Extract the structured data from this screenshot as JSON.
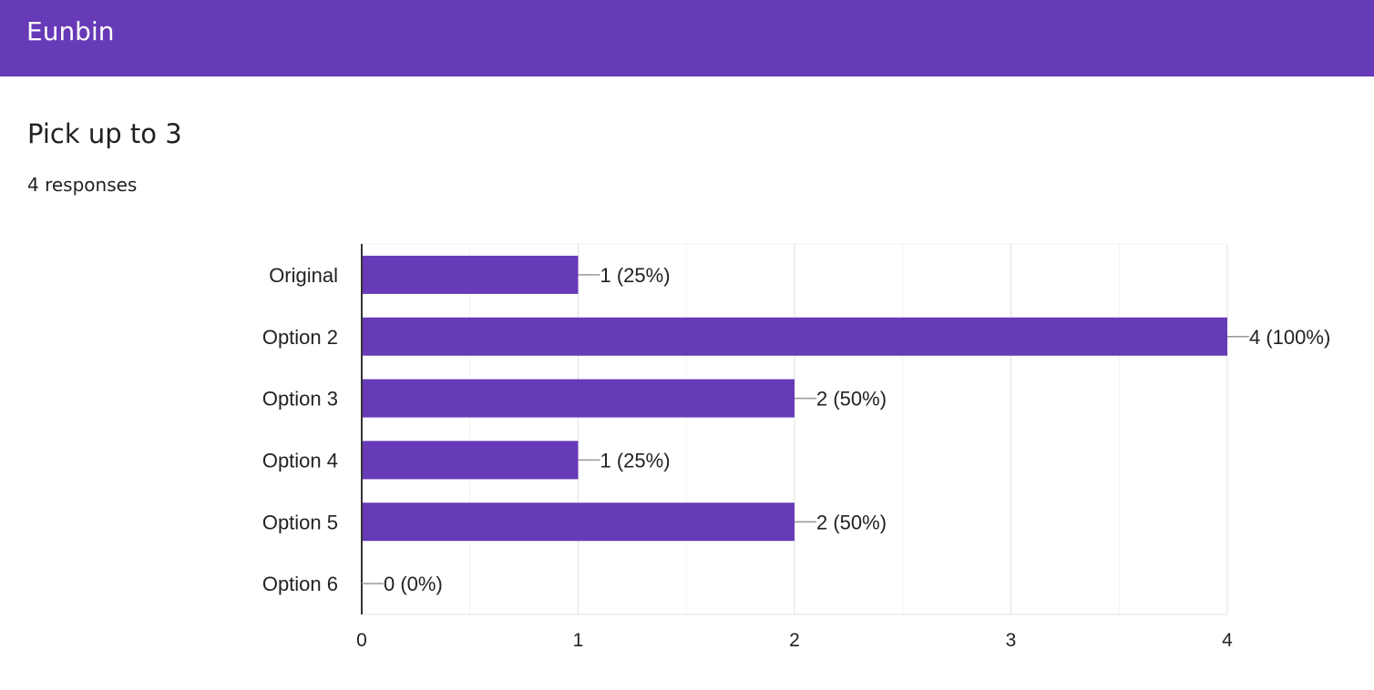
{
  "header": {
    "title": "Eunbin",
    "color": "#673ab7"
  },
  "question": {
    "title": "Pick up to 3",
    "responses": "4 responses"
  },
  "chart_data": {
    "type": "bar",
    "orientation": "horizontal",
    "categories": [
      "Original",
      "Option 2",
      "Option 3",
      "Option 4",
      "Option 5",
      "Option 6"
    ],
    "values": [
      1,
      4,
      2,
      1,
      2,
      0
    ],
    "data_labels": [
      "1 (25%)",
      "4 (100%)",
      "2 (50%)",
      "1 (25%)",
      "2 (50%)",
      "0 (0%)"
    ],
    "xlim": [
      0,
      4
    ],
    "xticks": [
      "0",
      "1",
      "2",
      "3",
      "4"
    ],
    "grid": true,
    "bar_color": "#673ab7"
  }
}
